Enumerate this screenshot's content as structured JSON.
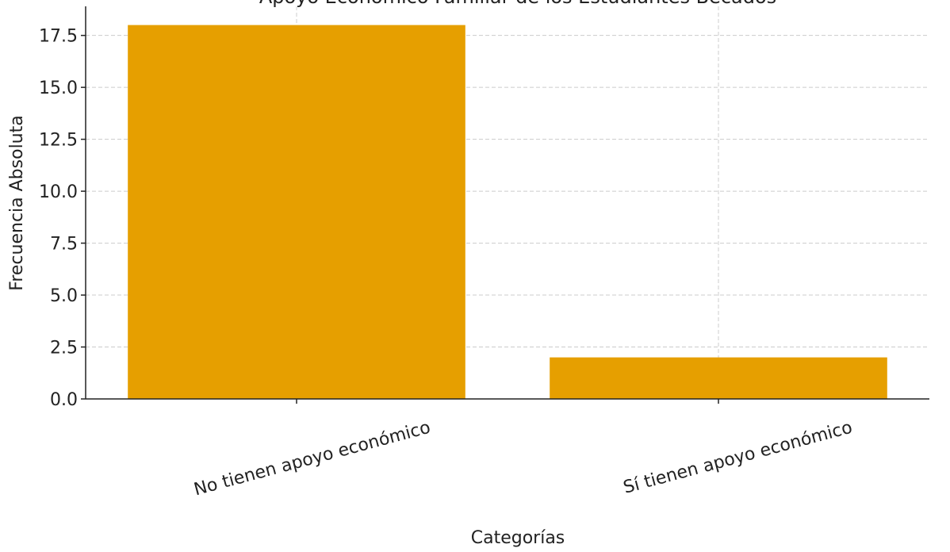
{
  "chart_data": {
    "type": "bar",
    "title": "Apoyo Económico Familiar de los Estudiantes Becados",
    "xlabel": "Categorías",
    "ylabel": "Frecuencia Absoluta",
    "categories": [
      "No tienen apoyo económico",
      "Sí tienen apoyo económico"
    ],
    "values": [
      18,
      2
    ],
    "ylim": [
      0,
      18.9
    ],
    "yticks": [
      "0.0",
      "2.5",
      "5.0",
      "7.5",
      "10.0",
      "12.5",
      "15.0",
      "17.5"
    ],
    "grid": true,
    "bar_color": "#e69f00"
  }
}
